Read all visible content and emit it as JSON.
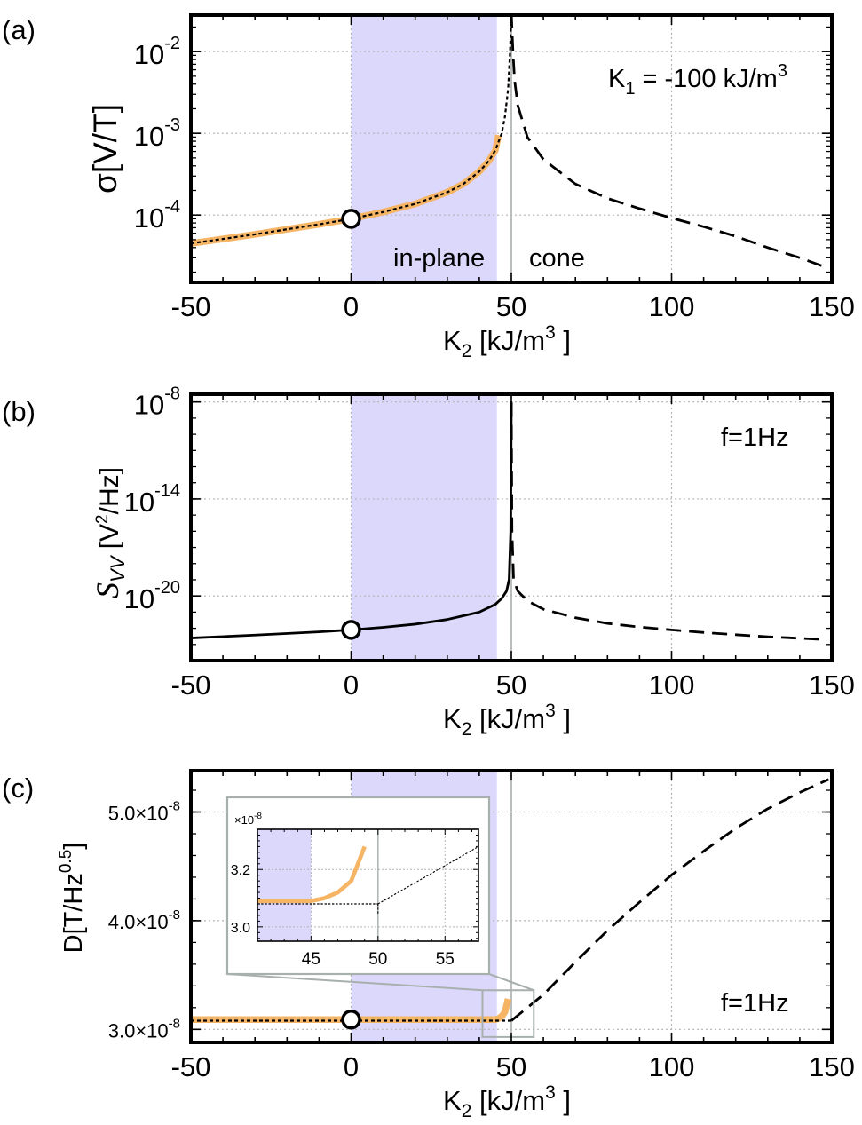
{
  "chart_data": [
    {
      "panel": "(a)",
      "type": "line",
      "yscale": "log",
      "xlim": [
        -50,
        150
      ],
      "ylim": [
        1.5e-05,
        0.028
      ],
      "xlabel": "K",
      "xlabel_sub": "2",
      "xlabel_rest": " [kJ/m",
      "xlabel_sup": "3",
      "xlabel_end": " ]",
      "ylabel": "σ[V/T]",
      "xticks": [
        "-50",
        "0",
        "50",
        "100",
        "150"
      ],
      "yticks": [
        {
          "base": "10",
          "exp": "-2"
        },
        {
          "base": "10",
          "exp": "-3"
        },
        {
          "base": "10",
          "exp": "-4"
        }
      ],
      "annotation": {
        "main": "K",
        "sub": "1",
        "rest": " = -100 kJ/m",
        "sup": "3"
      },
      "region_labels": [
        "in-plane",
        "cone"
      ],
      "shaded_region": [
        0,
        45.5
      ],
      "divider_x": 50,
      "marker": {
        "x": 0,
        "y": 9e-05
      },
      "series": [
        {
          "style": "orange-thick",
          "points": [
            [
              -50,
              4.5e-05
            ],
            [
              -40,
              5.1e-05
            ],
            [
              -30,
              5.8e-05
            ],
            [
              -20,
              6.7e-05
            ],
            [
              -10,
              7.7e-05
            ],
            [
              0,
              9e-05
            ],
            [
              10,
              0.000109
            ],
            [
              20,
              0.000137
            ],
            [
              30,
              0.00019
            ],
            [
              35,
              0.00024
            ],
            [
              40,
              0.00034
            ],
            [
              43,
              0.00046
            ],
            [
              45,
              0.00062
            ],
            [
              46,
              0.00095
            ]
          ]
        },
        {
          "style": "black-dotted",
          "points": [
            [
              -50,
              4.5e-05
            ],
            [
              -40,
              5.1e-05
            ],
            [
              -30,
              5.8e-05
            ],
            [
              -20,
              6.7e-05
            ],
            [
              -10,
              7.7e-05
            ],
            [
              0,
              9e-05
            ],
            [
              10,
              0.000109
            ],
            [
              20,
              0.000137
            ],
            [
              30,
              0.00019
            ],
            [
              35,
              0.00024
            ],
            [
              40,
              0.00034
            ],
            [
              43,
              0.00046
            ],
            [
              45,
              0.00062
            ],
            [
              47,
              0.001
            ],
            [
              48,
              0.0016
            ],
            [
              49,
              0.0035
            ],
            [
              49.6,
              0.01
            ],
            [
              50,
              0.03
            ]
          ]
        },
        {
          "style": "black-dashed",
          "points": [
            [
              50,
              0.03
            ],
            [
              50.5,
              0.01
            ],
            [
              51,
              0.0045
            ],
            [
              52,
              0.0022
            ],
            [
              55,
              0.0009
            ],
            [
              60,
              0.00048
            ],
            [
              70,
              0.00024
            ],
            [
              80,
              0.00016
            ],
            [
              90,
              0.00012
            ],
            [
              100,
              9.2e-05
            ],
            [
              110,
              7.2e-05
            ],
            [
              120,
              5.5e-05
            ],
            [
              130,
              4e-05
            ],
            [
              140,
              3e-05
            ],
            [
              148,
              2.3e-05
            ]
          ]
        }
      ]
    },
    {
      "panel": "(b)",
      "type": "line",
      "yscale": "log",
      "xlim": [
        -50,
        150
      ],
      "ylim": [
        1e-24,
        3e-08
      ],
      "xlabel": "K",
      "xlabel_sub": "2",
      "xlabel_rest": " [kJ/m",
      "xlabel_sup": "3",
      "xlabel_end": " ]",
      "ylabel": "S",
      "ylabel_sub": "VV",
      "ylabel_rest": " [V",
      "ylabel_sup": "2",
      "ylabel_end": "/Hz]",
      "xticks": [
        "-50",
        "0",
        "50",
        "100",
        "150"
      ],
      "yticks": [
        {
          "base": "10",
          "exp": "-8"
        },
        {
          "base": "10",
          "exp": "-14"
        },
        {
          "base": "10",
          "exp": "-20"
        }
      ],
      "annotation": {
        "main": "f=1Hz"
      },
      "shaded_region": [
        0,
        45.5
      ],
      "divider_x": 50,
      "marker": {
        "x": 0,
        "y": 8e-23
      },
      "series": [
        {
          "style": "black-solid",
          "points": [
            [
              -50,
              2.5e-23
            ],
            [
              -30,
              3.8e-23
            ],
            [
              -10,
              6e-23
            ],
            [
              0,
              8e-23
            ],
            [
              10,
              1.15e-22
            ],
            [
              20,
              1.8e-22
            ],
            [
              30,
              3.5e-22
            ],
            [
              40,
              1e-21
            ],
            [
              45,
              3e-21
            ],
            [
              47,
              7e-21
            ],
            [
              48.5,
              2e-20
            ],
            [
              49.3,
              1e-19
            ],
            [
              49.8,
              1e-16
            ],
            [
              50,
              1e-08
            ]
          ]
        },
        {
          "style": "black-dashed",
          "points": [
            [
              50,
              1e-08
            ],
            [
              50.2,
              1e-16
            ],
            [
              50.7,
              1e-19
            ],
            [
              52,
              2e-20
            ],
            [
              55,
              5e-21
            ],
            [
              60,
              1.5e-21
            ],
            [
              70,
              4.5e-22
            ],
            [
              80,
              2e-22
            ],
            [
              90,
              1.2e-22
            ],
            [
              100,
              8e-23
            ],
            [
              110,
              5.5e-23
            ],
            [
              120,
              4e-23
            ],
            [
              130,
              3e-23
            ],
            [
              140,
              2.4e-23
            ],
            [
              148,
              2e-23
            ]
          ]
        }
      ]
    },
    {
      "panel": "(c)",
      "type": "line",
      "yscale": "linear",
      "xlim": [
        -50,
        150
      ],
      "ylim": [
        2.88e-08,
        5.38e-08
      ],
      "xlabel": "K",
      "xlabel_sub": "2",
      "xlabel_rest": " [kJ/m",
      "xlabel_sup": "3",
      "xlabel_end": " ]",
      "ylabel": "D[T/Hz",
      "ylabel_sup": "0.5",
      "ylabel_end": "]",
      "xticks": [
        "-50",
        "0",
        "50",
        "100",
        "150"
      ],
      "yticks": [
        {
          "base": "3.0×10",
          "exp": "-8",
          "value": 3e-08
        },
        {
          "base": "4.0×10",
          "exp": "-8",
          "value": 4e-08
        },
        {
          "base": "5.0×10",
          "exp": "-8",
          "value": 5e-08
        }
      ],
      "annotation": {
        "main": "f=1Hz"
      },
      "shaded_region": [
        0,
        45.5
      ],
      "divider_x": 50,
      "marker": {
        "x": 0,
        "y": 3.09e-08
      },
      "series": [
        {
          "style": "orange-thick",
          "points": [
            [
              -50,
              3.09e-08
            ],
            [
              45,
              3.09e-08
            ],
            [
              46,
              3.1e-08
            ],
            [
              47,
              3.12e-08
            ],
            [
              48,
              3.16e-08
            ],
            [
              49,
              3.28e-08
            ]
          ]
        },
        {
          "style": "black-dotted",
          "points": [
            [
              -50,
              3.08e-08
            ],
            [
              50,
              3.08e-08
            ]
          ]
        },
        {
          "style": "black-dashed",
          "points": [
            [
              50,
              3.08e-08
            ],
            [
              60,
              3.32e-08
            ],
            [
              70,
              3.62e-08
            ],
            [
              80,
              3.91e-08
            ],
            [
              90,
              4.17e-08
            ],
            [
              100,
              4.42e-08
            ],
            [
              110,
              4.64e-08
            ],
            [
              120,
              4.85e-08
            ],
            [
              130,
              5.03e-08
            ],
            [
              140,
              5.18e-08
            ],
            [
              149,
              5.3e-08
            ]
          ]
        }
      ],
      "zoom_box": {
        "x": [
          41,
          57
        ],
        "y": [
          2.93e-08,
          3.36e-08
        ]
      },
      "inset": {
        "xlim": [
          41,
          57.5
        ],
        "ylim": [
          2.95e-08,
          3.34e-08
        ],
        "xticks": [
          "45",
          "50",
          "55"
        ],
        "xtick_values": [
          45,
          50,
          55
        ],
        "yticks": [
          "3.0",
          "3.2"
        ],
        "ytick_values": [
          3e-08,
          3.2e-08
        ],
        "multiplier": {
          "base": "×10",
          "exp": "-8"
        },
        "shaded_region": [
          41,
          45
        ],
        "divider_x": 50,
        "series": [
          {
            "style": "orange-thick",
            "points": [
              [
                41,
                3.09e-08
              ],
              [
                45,
                3.09e-08
              ],
              [
                46,
                3.1e-08
              ],
              [
                47,
                3.12e-08
              ],
              [
                48,
                3.16e-08
              ],
              [
                49,
                3.28e-08
              ]
            ]
          },
          {
            "style": "black-dotted",
            "points": [
              [
                41,
                3.08e-08
              ],
              [
                50,
                3.08e-08
              ]
            ]
          },
          {
            "style": "black-dashed-thin",
            "points": [
              [
                50,
                3.08e-08
              ],
              [
                50,
                3.04e-08
              ]
            ]
          },
          {
            "style": "black-dashed-thin",
            "points": [
              [
                50,
                3.08e-08
              ],
              [
                57.5,
                3.28e-08
              ]
            ]
          }
        ]
      }
    }
  ]
}
